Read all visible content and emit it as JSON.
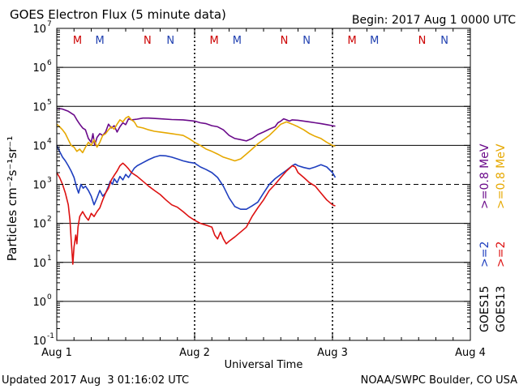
{
  "chart_data": {
    "type": "line",
    "title": "GOES Electron Flux (5 minute data)",
    "begin_label": "Begin: 2017 Aug 1 0000 UTC",
    "xlabel": "Universal Time",
    "ylabel": "Particles cm⁻²s⁻¹sr⁻¹",
    "yscale": "log",
    "ylim": [
      0.1,
      10000000
    ],
    "xlim": [
      0,
      72
    ],
    "x_unit": "hours since 2017 Aug 1 0000 UTC",
    "x_ticks": [
      {
        "x": 0,
        "label": "Aug 1"
      },
      {
        "x": 24,
        "label": "Aug 2"
      },
      {
        "x": 48,
        "label": "Aug 3"
      },
      {
        "x": 72,
        "label": "Aug 4"
      }
    ],
    "y_ticks": [
      {
        "value": 10000000,
        "mantissa": "10",
        "exp": "7"
      },
      {
        "value": 1000000,
        "mantissa": "10",
        "exp": "6"
      },
      {
        "value": 100000,
        "mantissa": "10",
        "exp": "5"
      },
      {
        "value": 10000,
        "mantissa": "10",
        "exp": "4"
      },
      {
        "value": 1000,
        "mantissa": "10",
        "exp": "3"
      },
      {
        "value": 100,
        "mantissa": "10",
        "exp": "2"
      },
      {
        "value": 10,
        "mantissa": "10",
        "exp": "1"
      },
      {
        "value": 1,
        "mantissa": "10",
        "exp": "0"
      },
      {
        "value": 0.1,
        "mantissa": "10",
        "exp": "-1"
      }
    ],
    "threshold_line": {
      "value": 1000,
      "style": "dashed"
    },
    "day_separators_hours": [
      24,
      48
    ],
    "grid_decades": [
      1,
      10,
      100,
      10000,
      100000,
      1000000
    ],
    "local_time_markers": [
      {
        "x": 3.6,
        "label": "M",
        "color": "#cc0000"
      },
      {
        "x": 7.5,
        "label": "M",
        "color": "#2040b0"
      },
      {
        "x": 15.8,
        "label": "N",
        "color": "#cc0000"
      },
      {
        "x": 19.8,
        "label": "N",
        "color": "#2040b0"
      },
      {
        "x": 27.4,
        "label": "M",
        "color": "#cc0000"
      },
      {
        "x": 31.4,
        "label": "M",
        "color": "#2040b0"
      },
      {
        "x": 39.6,
        "label": "N",
        "color": "#cc0000"
      },
      {
        "x": 43.5,
        "label": "N",
        "color": "#2040b0"
      },
      {
        "x": 51.4,
        "label": "M",
        "color": "#cc0000"
      },
      {
        "x": 55.3,
        "label": "M",
        "color": "#2040b0"
      },
      {
        "x": 63.6,
        "label": "N",
        "color": "#cc0000"
      },
      {
        "x": 67.5,
        "label": "N",
        "color": "#2040b0"
      }
    ],
    "legend": [
      {
        "name": "GOES15 >=0.8 MeV",
        "satellite": "GOES15",
        "energy": ">=0.8 MeV",
        "color": "#6a0a8a"
      },
      {
        "name": "GOES15 >=2 MeV",
        "satellite": "GOES15",
        "energy": ">=2",
        "color": "#1f3fbf"
      },
      {
        "name": "GOES13 >=0.8 MeV",
        "satellite": "GOES13",
        "energy": ">=0.8 MeV",
        "color": "#e6a800"
      },
      {
        "name": "GOES13 >=2 MeV",
        "satellite": "GOES13",
        "energy": ">=2",
        "color": "#dd1111"
      }
    ],
    "series": [
      {
        "name": "GOES15 >=0.8 MeV",
        "color": "#6a0a8a",
        "points": [
          [
            0,
            90000
          ],
          [
            1,
            85000
          ],
          [
            2,
            75000
          ],
          [
            3,
            60000
          ],
          [
            3.5,
            45000
          ],
          [
            4,
            35000
          ],
          [
            4.5,
            28000
          ],
          [
            5,
            25000
          ],
          [
            5.5,
            15000
          ],
          [
            6,
            12000
          ],
          [
            6.3,
            20000
          ],
          [
            6.6,
            10000
          ],
          [
            7,
            16000
          ],
          [
            7.5,
            20000
          ],
          [
            8,
            18000
          ],
          [
            8.5,
            22000
          ],
          [
            9,
            35000
          ],
          [
            9.5,
            28000
          ],
          [
            10,
            32000
          ],
          [
            10.5,
            22000
          ],
          [
            11,
            30000
          ],
          [
            11.5,
            38000
          ],
          [
            12,
            34000
          ],
          [
            12.5,
            48000
          ],
          [
            13,
            45000
          ],
          [
            14,
            47000
          ],
          [
            15,
            50000
          ],
          [
            16,
            50000
          ],
          [
            18,
            48000
          ],
          [
            20,
            46000
          ],
          [
            22,
            45000
          ],
          [
            24,
            42000
          ],
          [
            25,
            38000
          ],
          [
            26,
            36000
          ],
          [
            27,
            32000
          ],
          [
            28,
            30000
          ],
          [
            29,
            25000
          ],
          [
            30,
            18000
          ],
          [
            31,
            15000
          ],
          [
            32,
            14000
          ],
          [
            33,
            13000
          ],
          [
            34,
            15000
          ],
          [
            35,
            19000
          ],
          [
            36,
            22000
          ],
          [
            37,
            26000
          ],
          [
            38,
            30000
          ],
          [
            38.5,
            38000
          ],
          [
            39,
            42000
          ],
          [
            39.5,
            48000
          ],
          [
            40,
            45000
          ],
          [
            40.5,
            42000
          ],
          [
            41,
            45000
          ],
          [
            42,
            44000
          ],
          [
            43,
            42000
          ],
          [
            44,
            40000
          ],
          [
            45,
            38000
          ],
          [
            46,
            36000
          ],
          [
            47,
            34000
          ],
          [
            48,
            32000
          ],
          [
            48.5,
            31000
          ]
        ]
      },
      {
        "name": "GOES15 >=2 MeV",
        "color": "#1f3fbf",
        "points": [
          [
            0,
            10000
          ],
          [
            0.5,
            7000
          ],
          [
            1,
            5000
          ],
          [
            1.5,
            4000
          ],
          [
            2,
            3000
          ],
          [
            2.5,
            2200
          ],
          [
            3,
            1500
          ],
          [
            3.5,
            800
          ],
          [
            3.8,
            600
          ],
          [
            4.2,
            1000
          ],
          [
            4.6,
            800
          ],
          [
            5,
            900
          ],
          [
            5.5,
            700
          ],
          [
            6,
            500
          ],
          [
            6.5,
            300
          ],
          [
            7,
            450
          ],
          [
            7.5,
            700
          ],
          [
            8,
            500
          ],
          [
            8.5,
            600
          ],
          [
            9,
            900
          ],
          [
            9.3,
            1200
          ],
          [
            9.7,
            1000
          ],
          [
            10,
            1400
          ],
          [
            10.5,
            1100
          ],
          [
            11,
            1600
          ],
          [
            11.5,
            1300
          ],
          [
            12,
            1800
          ],
          [
            12.5,
            1500
          ],
          [
            13,
            2000
          ],
          [
            13.5,
            2600
          ],
          [
            14,
            3000
          ],
          [
            15,
            3600
          ],
          [
            16,
            4300
          ],
          [
            17,
            5000
          ],
          [
            18,
            5500
          ],
          [
            19,
            5400
          ],
          [
            20,
            5000
          ],
          [
            21,
            4500
          ],
          [
            22,
            4000
          ],
          [
            23,
            3700
          ],
          [
            24,
            3500
          ],
          [
            25,
            2800
          ],
          [
            26,
            2400
          ],
          [
            27,
            2000
          ],
          [
            28,
            1500
          ],
          [
            29,
            900
          ],
          [
            30,
            450
          ],
          [
            31,
            270
          ],
          [
            32,
            230
          ],
          [
            33,
            230
          ],
          [
            34,
            280
          ],
          [
            35,
            350
          ],
          [
            36,
            600
          ],
          [
            37,
            1000
          ],
          [
            38,
            1400
          ],
          [
            39,
            1800
          ],
          [
            40,
            2300
          ],
          [
            41,
            3000
          ],
          [
            41.5,
            3300
          ],
          [
            42,
            3000
          ],
          [
            43,
            2700
          ],
          [
            44,
            2500
          ],
          [
            45,
            2800
          ],
          [
            46,
            3200
          ],
          [
            47,
            2800
          ],
          [
            48,
            2000
          ],
          [
            48.5,
            1500
          ]
        ]
      },
      {
        "name": "GOES13 >=0.8 MeV",
        "color": "#e6a800",
        "points": [
          [
            0,
            35000
          ],
          [
            0.5,
            30000
          ],
          [
            1,
            25000
          ],
          [
            1.5,
            20000
          ],
          [
            2,
            14000
          ],
          [
            2.5,
            10000
          ],
          [
            3,
            9000
          ],
          [
            3.5,
            7000
          ],
          [
            4,
            8000
          ],
          [
            4.5,
            6500
          ],
          [
            5,
            9000
          ],
          [
            5.5,
            12000
          ],
          [
            6,
            10000
          ],
          [
            6.5,
            14000
          ],
          [
            7,
            9000
          ],
          [
            7.5,
            12000
          ],
          [
            8,
            18000
          ],
          [
            8.5,
            20000
          ],
          [
            9,
            25000
          ],
          [
            9.5,
            30000
          ],
          [
            10,
            26000
          ],
          [
            10.5,
            35000
          ],
          [
            11,
            45000
          ],
          [
            11.5,
            40000
          ],
          [
            12,
            50000
          ],
          [
            12.5,
            55000
          ],
          [
            13,
            45000
          ],
          [
            13.5,
            40000
          ],
          [
            14,
            30000
          ],
          [
            15,
            28000
          ],
          [
            16,
            25000
          ],
          [
            17,
            23000
          ],
          [
            18,
            22000
          ],
          [
            19,
            21000
          ],
          [
            20,
            20000
          ],
          [
            21,
            19000
          ],
          [
            22,
            18000
          ],
          [
            23,
            15000
          ],
          [
            24,
            12000
          ],
          [
            25,
            10000
          ],
          [
            26,
            8000
          ],
          [
            27,
            7000
          ],
          [
            28,
            6000
          ],
          [
            29,
            5000
          ],
          [
            30,
            4500
          ],
          [
            31,
            4000
          ],
          [
            32,
            4500
          ],
          [
            33,
            6000
          ],
          [
            34,
            8000
          ],
          [
            35,
            11000
          ],
          [
            36,
            14000
          ],
          [
            37,
            18000
          ],
          [
            38,
            25000
          ],
          [
            39,
            35000
          ],
          [
            40,
            40000
          ],
          [
            41,
            35000
          ],
          [
            42,
            30000
          ],
          [
            43,
            25000
          ],
          [
            44,
            20000
          ],
          [
            45,
            17000
          ],
          [
            46,
            15000
          ],
          [
            47,
            12000
          ],
          [
            48,
            10000
          ],
          [
            48.5,
            9500
          ]
        ]
      },
      {
        "name": "GOES13 >=2 MeV",
        "color": "#dd1111",
        "points": [
          [
            0,
            2000
          ],
          [
            0.5,
            1500
          ],
          [
            1,
            1000
          ],
          [
            1.5,
            600
          ],
          [
            2,
            300
          ],
          [
            2.3,
            120
          ],
          [
            2.5,
            40
          ],
          [
            2.7,
            15
          ],
          [
            2.8,
            9
          ],
          [
            3,
            25
          ],
          [
            3.3,
            50
          ],
          [
            3.5,
            30
          ],
          [
            3.7,
            80
          ],
          [
            4,
            150
          ],
          [
            4.5,
            200
          ],
          [
            5,
            150
          ],
          [
            5.5,
            120
          ],
          [
            6,
            180
          ],
          [
            6.5,
            150
          ],
          [
            7,
            200
          ],
          [
            7.5,
            250
          ],
          [
            8,
            400
          ],
          [
            8.5,
            600
          ],
          [
            9,
            800
          ],
          [
            9.5,
            1300
          ],
          [
            10,
            1700
          ],
          [
            10.5,
            2200
          ],
          [
            11,
            3000
          ],
          [
            11.5,
            3500
          ],
          [
            12,
            3000
          ],
          [
            12.5,
            2500
          ],
          [
            13,
            2000
          ],
          [
            14,
            1600
          ],
          [
            15,
            1200
          ],
          [
            16,
            900
          ],
          [
            17,
            700
          ],
          [
            18,
            550
          ],
          [
            19,
            400
          ],
          [
            20,
            300
          ],
          [
            21,
            260
          ],
          [
            22,
            200
          ],
          [
            23,
            150
          ],
          [
            24,
            120
          ],
          [
            25,
            100
          ],
          [
            26,
            90
          ],
          [
            27,
            80
          ],
          [
            27.5,
            50
          ],
          [
            28,
            40
          ],
          [
            28.5,
            60
          ],
          [
            29,
            40
          ],
          [
            29.5,
            30
          ],
          [
            30,
            35
          ],
          [
            31,
            45
          ],
          [
            32,
            60
          ],
          [
            33,
            80
          ],
          [
            34,
            150
          ],
          [
            35,
            250
          ],
          [
            36,
            400
          ],
          [
            37,
            700
          ],
          [
            38,
            1000
          ],
          [
            39,
            1500
          ],
          [
            40,
            2200
          ],
          [
            41,
            3000
          ],
          [
            41.5,
            2800
          ],
          [
            42,
            2000
          ],
          [
            43,
            1500
          ],
          [
            44,
            1100
          ],
          [
            45,
            900
          ],
          [
            46,
            600
          ],
          [
            47,
            400
          ],
          [
            48,
            300
          ],
          [
            48.5,
            280
          ]
        ]
      }
    ]
  },
  "footer": {
    "updated": "Updated 2017 Aug  3 01:16:02 UTC",
    "source": "NOAA/SWPC Boulder, CO USA"
  },
  "colors": {
    "background": "#ffffff",
    "axis": "#000000"
  }
}
